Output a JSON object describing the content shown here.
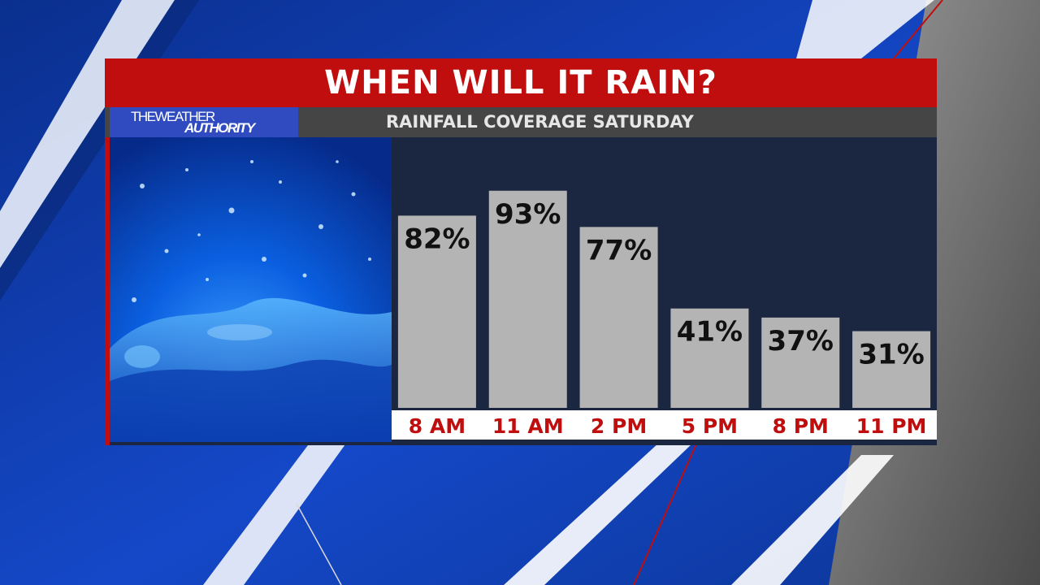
{
  "header": {
    "title": "WHEN WILL IT RAIN?",
    "subtitle": "RAINFALL COVERAGE SATURDAY"
  },
  "logo": {
    "line1": "THEWEATHER",
    "line2": "AUTHORITY"
  },
  "colors": {
    "title_bar": "#c00d0d",
    "subtitle_bar": "#454545",
    "logo_bg": "#2f4bbf",
    "bar_fill": "#b4b4b4",
    "label_text": "#c00d0d",
    "value_text": "#111111"
  },
  "chart_data": {
    "type": "bar",
    "title": "RAINFALL COVERAGE SATURDAY",
    "categories": [
      "8 AM",
      "11 AM",
      "2 PM",
      "5 PM",
      "8 PM",
      "11 PM"
    ],
    "values": [
      82,
      93,
      77,
      41,
      37,
      31
    ],
    "data_labels": [
      "82%",
      "93%",
      "77%",
      "41%",
      "37%",
      "31%"
    ],
    "unit": "%",
    "ylim": [
      0,
      100
    ],
    "grid": false,
    "legend": "none"
  }
}
